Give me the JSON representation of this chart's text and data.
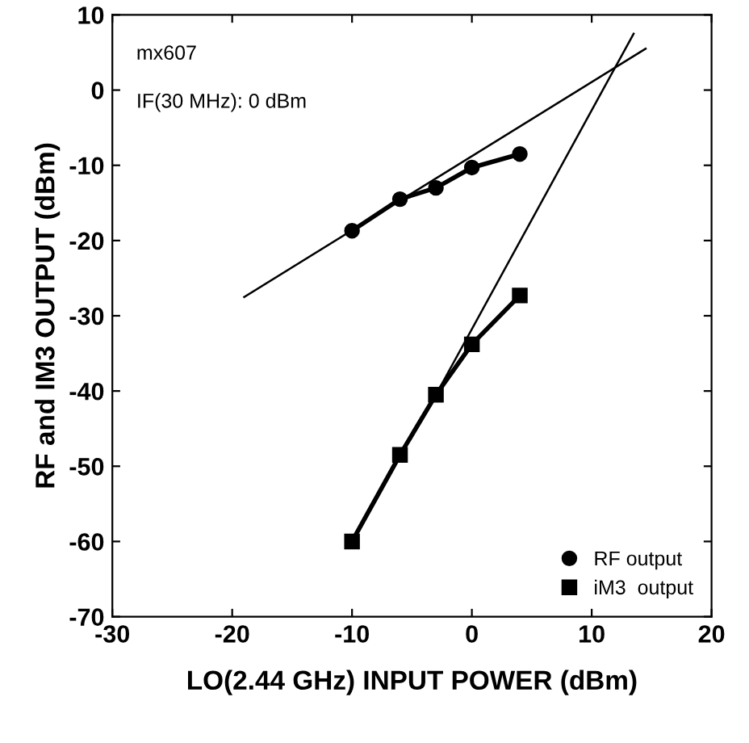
{
  "chart_data": {
    "type": "line",
    "xlabel": "LO(2.44 GHz) INPUT POWER (dBm)",
    "ylabel": "RF and IM3 OUTPUT (dBm)",
    "xlim": [
      -30,
      20
    ],
    "xticks": [
      -30,
      -20,
      -10,
      0,
      10,
      20
    ],
    "ylim": [
      -70,
      10
    ],
    "yticks": [
      -70,
      -60,
      -50,
      -40,
      -30,
      -20,
      -10,
      0,
      10
    ],
    "grid": false,
    "legend": "bottom right",
    "annotations": [
      "mx607",
      "IF(30 MHz): 0 dBm"
    ],
    "series": [
      {
        "name": "RF output",
        "color": "#000000",
        "marker": "circle",
        "x": [
          -10,
          -6,
          -3,
          0,
          4
        ],
        "values": [
          -18.7,
          -14.5,
          -13,
          -10.3,
          -8.5
        ]
      },
      {
        "name": "iM3  output",
        "color": "#000000",
        "marker": "square",
        "x": [
          -10,
          -6,
          -3,
          0,
          4
        ],
        "values": [
          -60,
          -48.5,
          -40.5,
          -33.8,
          -27.3
        ]
      },
      {
        "color": "#000000",
        "marker": "none",
        "x": [
          -19,
          14.5
        ],
        "values": [
          -27.5,
          5.5
        ]
      },
      {
        "color": "#000000",
        "marker": "none",
        "x": [
          -3,
          13.5
        ],
        "values": [
          -40.5,
          7.5
        ]
      }
    ]
  }
}
